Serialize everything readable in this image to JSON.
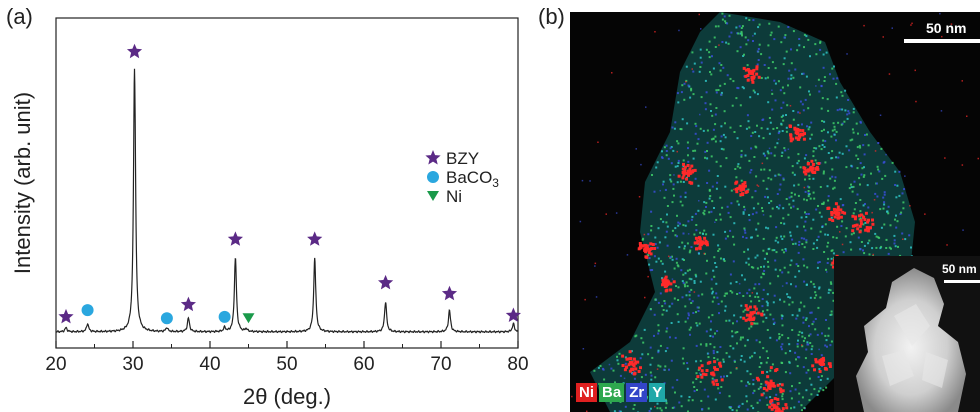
{
  "panel_a_label": "(a)",
  "panel_b_label": "(b)",
  "colors": {
    "bzy": "#5b2a86",
    "baco3": "#2aa7df",
    "ni": "#1a9a4a",
    "ni_map": "#ff2a2a",
    "ba_map": "#3fcf6a",
    "zr_map": "#3a4fd8",
    "y_map": "#2fc6c6"
  },
  "chart_data": {
    "type": "line",
    "xlabel": "2θ (deg.)",
    "ylabel": "Intensity (arb. unit)",
    "xlim": [
      20,
      80
    ],
    "xticks": [
      20,
      30,
      40,
      50,
      60,
      70,
      80
    ],
    "grid": false,
    "legend_position": "right",
    "baseline": 3,
    "peaks": [
      {
        "x": 21.3,
        "height": 1.5
      },
      {
        "x": 24.1,
        "height": 3
      },
      {
        "x": 30.2,
        "height": 97
      },
      {
        "x": 34.4,
        "height": 1.5
      },
      {
        "x": 37.2,
        "height": 5
      },
      {
        "x": 41.9,
        "height": 1.5
      },
      {
        "x": 43.3,
        "height": 27
      },
      {
        "x": 44.7,
        "height": 1
      },
      {
        "x": 53.6,
        "height": 27
      },
      {
        "x": 62.8,
        "height": 11
      },
      {
        "x": 71.1,
        "height": 8
      },
      {
        "x": 79.4,
        "height": 3
      }
    ],
    "markers": [
      {
        "phase": "BZY",
        "x": 21.3,
        "y": 8.5
      },
      {
        "phase": "BaCO3",
        "x": 24.1,
        "y": 11
      },
      {
        "phase": "BZY",
        "x": 30.2,
        "y": 106
      },
      {
        "phase": "BaCO3",
        "x": 34.4,
        "y": 8
      },
      {
        "phase": "BZY",
        "x": 37.2,
        "y": 13
      },
      {
        "phase": "BaCO3",
        "x": 41.9,
        "y": 8.5
      },
      {
        "phase": "Ni",
        "x": 45.0,
        "y": 8
      },
      {
        "phase": "BZY",
        "x": 43.3,
        "y": 37
      },
      {
        "phase": "BZY",
        "x": 53.6,
        "y": 37
      },
      {
        "phase": "BZY",
        "x": 62.8,
        "y": 21
      },
      {
        "phase": "BZY",
        "x": 71.1,
        "y": 17
      },
      {
        "phase": "BZY",
        "x": 79.4,
        "y": 9
      }
    ],
    "legend": [
      {
        "key": "BZY",
        "label": "BZY",
        "sub": ""
      },
      {
        "key": "BaCO3",
        "label": "BaCO",
        "sub": "3"
      },
      {
        "key": "Ni",
        "label": "Ni",
        "sub": ""
      }
    ]
  },
  "micrograph": {
    "scale_label": "50 nm",
    "inset_scale_label": "50 nm",
    "elements": [
      "Ni",
      "Ba",
      "Zr",
      "Y"
    ]
  }
}
